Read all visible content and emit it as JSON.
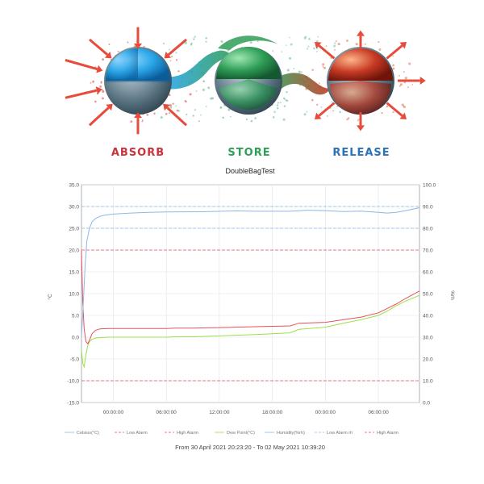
{
  "banner": {
    "labels": [
      {
        "text": "ABSORB",
        "color": "#c8343a"
      },
      {
        "text": "STORE",
        "color": "#2f9e57"
      },
      {
        "text": "RELEASE",
        "color": "#2a73b8"
      }
    ],
    "sphere_colors": [
      "#2aa6e8",
      "#2f9e57",
      "#c63a24"
    ]
  },
  "chart_data": {
    "type": "line",
    "title": "DoubleBagTest",
    "ylabel_left": "°C",
    "ylabel_right": "%rh",
    "y_left_range": [
      -15,
      35
    ],
    "y_left_ticks": [
      "35.0",
      "30.0",
      "25.0",
      "20.0",
      "15.0",
      "10.0",
      "5.0",
      "0.0",
      "-5.0",
      "-10.0",
      "-15.0"
    ],
    "y_right_range": [
      0,
      100
    ],
    "y_right_ticks": [
      "100.0",
      "90.0",
      "80.0",
      "70.0",
      "60.0",
      "50.0",
      "40.0",
      "30.0",
      "20.0",
      "10.0",
      "0.0"
    ],
    "x_tick_labels": [
      "00:00:00",
      "06:00:00",
      "12:00:00",
      "18:00:00",
      "00:00:00",
      "06:00:00"
    ],
    "x_range_hours": [
      20.4,
      58.65
    ],
    "x_tick_hours": [
      24,
      30,
      36,
      42,
      48,
      54
    ],
    "grid": true,
    "legend_position": "bottom",
    "legend": [
      "Celsius(°C)",
      "Low Alarm",
      "High Alarm",
      "Dew Point(°C)",
      "Humidity(%rh)",
      "Low Alarm rh",
      "High Alarm"
    ],
    "series": [
      {
        "name": "Celsius(°C)",
        "color": "#e8505b",
        "axis": "left",
        "x": [
          20.4,
          20.55,
          20.7,
          20.9,
          21.1,
          21.35,
          21.6,
          22.0,
          22.5,
          23.5,
          26,
          28,
          29,
          30,
          31,
          32,
          33,
          36,
          40,
          42,
          44,
          45,
          48,
          50,
          52,
          54,
          55,
          56,
          57,
          58.65
        ],
        "y": [
          20,
          8,
          2,
          -1,
          -1.5,
          -0.5,
          0.8,
          1.6,
          1.9,
          2,
          2,
          2,
          2,
          2,
          2.1,
          2.1,
          2.1,
          2.2,
          2.4,
          2.5,
          2.6,
          3.2,
          3.4,
          4,
          4.6,
          5.6,
          6.6,
          7.6,
          8.8,
          10.6
        ]
      },
      {
        "name": "Dew Point(°C)",
        "color": "#9be04a",
        "axis": "left",
        "x": [
          20.4,
          20.55,
          20.7,
          20.9,
          21.1,
          21.35,
          21.6,
          22.0,
          22.5,
          23.5,
          26,
          28,
          29,
          30,
          31,
          32,
          33,
          36,
          40,
          42,
          44,
          45,
          48,
          50,
          52,
          54,
          55,
          56,
          57,
          58.65
        ],
        "y": [
          -3,
          -6,
          -6.8,
          -4,
          -2,
          -0.9,
          -0.5,
          -0.2,
          -0.1,
          0,
          0,
          0,
          0,
          0,
          0.1,
          0.1,
          0.1,
          0.3,
          0.6,
          0.8,
          1,
          1.8,
          2.3,
          3.2,
          4,
          5,
          6,
          7.2,
          8.2,
          9.6
        ]
      },
      {
        "name": "Humidity(%rh)",
        "color": "#8fb6e8",
        "axis": "right",
        "x": [
          20.4,
          20.6,
          20.8,
          21,
          21.3,
          21.6,
          22,
          22.5,
          23,
          24,
          26,
          28,
          30,
          34,
          38,
          40,
          44,
          46,
          48,
          50,
          52,
          54,
          55,
          56,
          57,
          58.65
        ],
        "y": [
          30,
          45,
          62,
          74,
          80,
          83,
          84.5,
          85.5,
          86,
          86.5,
          87,
          87.3,
          87.5,
          87.6,
          88,
          87.8,
          87.8,
          88.3,
          88.1,
          87.7,
          87.9,
          87.3,
          87,
          87.3,
          88,
          89.5
        ]
      }
    ],
    "alarm_lines": [
      {
        "name": "High Alarm",
        "axis": "left",
        "value": 20,
        "color": "#e8505b"
      },
      {
        "name": "Low Alarm",
        "axis": "left",
        "value": -10,
        "color": "#e8505b"
      },
      {
        "name": "High Alarm rh",
        "axis": "right",
        "value": 90,
        "color": "#8fb6e8"
      },
      {
        "name": "Low Alarm rh",
        "axis": "right",
        "value": 80,
        "color": "#8fb6e8"
      }
    ],
    "date_range": "From  30 April 2021 20:23:20  -  To  02 May 2021 10:39:20"
  }
}
